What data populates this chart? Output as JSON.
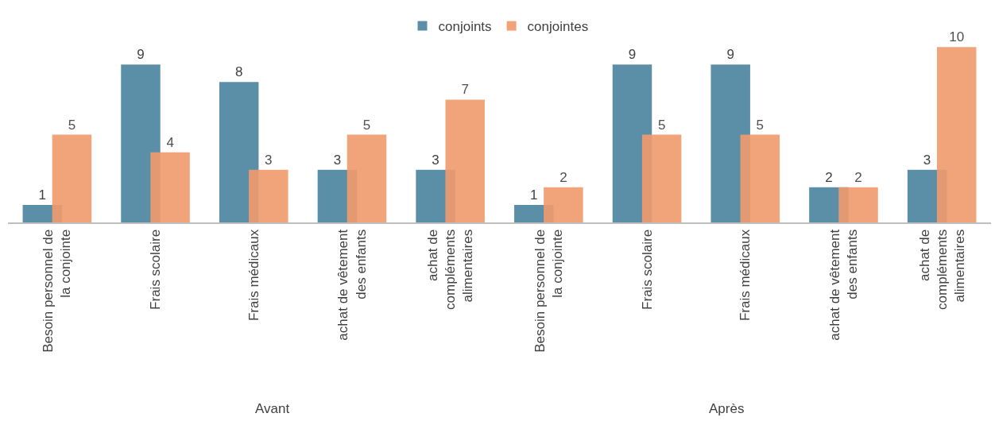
{
  "chart_data": {
    "type": "bar",
    "categories": [
      "Besoin personnel de la conjointe",
      "Frais scolaire",
      "Frais médicaux",
      "achat de vêtement des enfants",
      "achat de compléments alimentaires",
      "Besoin personnel de la conjointe",
      "Frais scolaire",
      "Frais médicaux",
      "achat de vêtement des enfants",
      "achat de compléments alimentaires"
    ],
    "series": [
      {
        "name": "conjoints",
        "color": "#5b8fa8",
        "values": [
          1,
          9,
          8,
          3,
          3,
          1,
          9,
          9,
          2,
          3
        ]
      },
      {
        "name": "conjointes",
        "color": "#f09b6e",
        "values": [
          5,
          4,
          3,
          5,
          7,
          2,
          5,
          5,
          2,
          10
        ]
      }
    ],
    "annotations": [
      "Avant",
      "Après"
    ],
    "data_labels": true,
    "legend": "top"
  }
}
